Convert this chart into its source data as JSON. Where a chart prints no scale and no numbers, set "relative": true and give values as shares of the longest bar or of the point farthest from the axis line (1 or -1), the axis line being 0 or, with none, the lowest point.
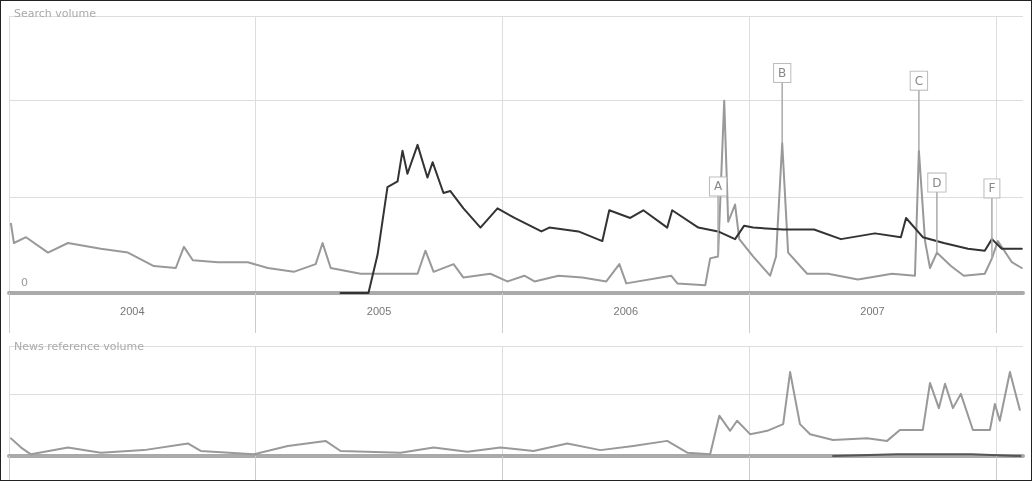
{
  "chart_data": [
    {
      "type": "line",
      "title": "Search volume",
      "relative": true,
      "grid": true,
      "marker": "none",
      "line_style": "solid",
      "tick_labels": "x",
      "xlim": [
        2004,
        2008.11
      ],
      "xticks": [
        {
          "value": 2004,
          "label": null
        },
        {
          "value": 2004.5,
          "label": "2004"
        },
        {
          "value": 2005,
          "label": null
        },
        {
          "value": 2005.5,
          "label": "2005"
        },
        {
          "value": 2006,
          "label": null
        },
        {
          "value": 2006.5,
          "label": "2006"
        },
        {
          "value": 2007,
          "label": null
        },
        {
          "value": 2007.5,
          "label": "2007"
        },
        {
          "value": 2008,
          "label": null
        }
      ],
      "annotations": [
        "0",
        {
          "text": "A",
          "x": 2006.874,
          "y": 0.19
        },
        {
          "text": "B",
          "x": 2007.134,
          "y": 0.78
        },
        {
          "text": "C",
          "x": 2007.688,
          "y": 0.74
        },
        {
          "text": "D",
          "x": 2007.761,
          "y": 0.21
        },
        {
          "text": "F",
          "x": 2007.984,
          "y": 0.18
        }
      ],
      "series": [
        {
          "color": "#999999",
          "x": [
            2004.008,
            2004.02,
            2004.069,
            2004.158,
            2004.239,
            2004.372,
            2004.482,
            2004.587,
            2004.676,
            2004.709,
            2004.745,
            2004.846,
            2004.968,
            2005.049,
            2005.154,
            2005.243,
            2005.271,
            2005.304,
            2005.425,
            2005.656,
            2005.688,
            2005.721,
            2005.802,
            2005.842,
            2005.951,
            2006.02,
            2006.089,
            2006.13,
            2006.227,
            2006.324,
            2006.421,
            2006.474,
            2006.502,
            2006.684,
            2006.709,
            2006.822,
            2006.842,
            2006.874,
            2006.899,
            2006.915,
            2006.943,
            2006.96,
            2007.016,
            2007.085,
            2007.109,
            2007.134,
            2007.158,
            2007.235,
            2007.32,
            2007.441,
            2007.579,
            2007.672,
            2007.688,
            2007.713,
            2007.733,
            2007.761,
            2007.818,
            2007.87,
            2007.955,
            2007.984,
            2008.008,
            2008.065,
            2008.105
          ],
          "values": [
            0.36,
            0.26,
            0.29,
            0.21,
            0.26,
            0.23,
            0.21,
            0.14,
            0.13,
            0.24,
            0.17,
            0.16,
            0.16,
            0.13,
            0.11,
            0.15,
            0.26,
            0.13,
            0.1,
            0.1,
            0.22,
            0.11,
            0.15,
            0.08,
            0.1,
            0.06,
            0.09,
            0.06,
            0.09,
            0.08,
            0.06,
            0.15,
            0.05,
            0.09,
            0.05,
            0.04,
            0.18,
            0.19,
            1,
            0.37,
            0.46,
            0.28,
            0.19,
            0.09,
            0.19,
            0.78,
            0.21,
            0.1,
            0.1,
            0.07,
            0.1,
            0.09,
            0.74,
            0.27,
            0.13,
            0.21,
            0.14,
            0.09,
            0.1,
            0.18,
            0.27,
            0.16,
            0.13
          ]
        },
        {
          "color": "#333333",
          "x": [
            2005.344,
            2005.457,
            2005.494,
            2005.534,
            2005.575,
            2005.595,
            2005.615,
            2005.656,
            2005.696,
            2005.717,
            2005.761,
            2005.789,
            2005.842,
            2005.911,
            2005.98,
            2006.049,
            2006.158,
            2006.19,
            2006.308,
            2006.405,
            2006.433,
            2006.518,
            2006.571,
            2006.668,
            2006.688,
            2006.794,
            2006.874,
            2006.943,
            2006.98,
            2007.016,
            2007.138,
            2007.263,
            2007.372,
            2007.51,
            2007.615,
            2007.636,
            2007.704,
            2007.789,
            2007.887,
            2007.955,
            2007.984,
            2008.024,
            2008.105
          ],
          "values": [
            0,
            0,
            0.2,
            0.55,
            0.58,
            0.74,
            0.62,
            0.77,
            0.6,
            0.68,
            0.52,
            0.53,
            0.44,
            0.34,
            0.44,
            0.39,
            0.32,
            0.34,
            0.32,
            0.27,
            0.43,
            0.39,
            0.43,
            0.34,
            0.43,
            0.34,
            0.32,
            0.28,
            0.35,
            0.34,
            0.33,
            0.33,
            0.28,
            0.31,
            0.29,
            0.39,
            0.29,
            0.26,
            0.23,
            0.22,
            0.28,
            0.23,
            0.23
          ]
        }
      ]
    },
    {
      "type": "line",
      "title": "News reference volume",
      "relative": true,
      "grid": true,
      "marker": "none",
      "line_style": "solid",
      "tick_labels": false,
      "xlim": [
        2004,
        2008.11
      ],
      "xticks": [
        {
          "value": 2004,
          "label": null
        },
        {
          "value": 2005,
          "label": null
        },
        {
          "value": 2006,
          "label": null
        },
        {
          "value": 2007,
          "label": null
        },
        {
          "value": 2008,
          "label": null
        }
      ],
      "series": [
        {
          "color": "#999999",
          "x": [
            2004.008,
            2004.049,
            2004.089,
            2004.239,
            2004.372,
            2004.547,
            2004.725,
            2004.777,
            2004.992,
            2005.13,
            2005.283,
            2005.344,
            2005.587,
            2005.721,
            2005.858,
            2005.992,
            2006.126,
            2006.263,
            2006.397,
            2006.53,
            2006.668,
            2006.749,
            2006.842,
            2006.879,
            2006.923,
            2006.951,
            2007.004,
            2007.073,
            2007.138,
            2007.166,
            2007.206,
            2007.247,
            2007.34,
            2007.478,
            2007.559,
            2007.611,
            2007.704,
            2007.733,
            2007.769,
            2007.794,
            2007.826,
            2007.858,
            2007.907,
            2007.976,
            2007.996,
            2008.016,
            2008.057,
            2008.097
          ],
          "values": [
            0.21,
            0.1,
            0.02,
            0.1,
            0.04,
            0.07,
            0.15,
            0.06,
            0.02,
            0.12,
            0.18,
            0.06,
            0.04,
            0.1,
            0.05,
            0.1,
            0.06,
            0.15,
            0.07,
            0.12,
            0.18,
            0.04,
            0.02,
            0.48,
            0.3,
            0.42,
            0.26,
            0.3,
            0.38,
            1,
            0.38,
            0.26,
            0.19,
            0.21,
            0.18,
            0.31,
            0.31,
            0.87,
            0.57,
            0.86,
            0.57,
            0.74,
            0.31,
            0.31,
            0.62,
            0.42,
            1,
            0.55
          ]
        },
        {
          "color": "#555555",
          "x": [
            2007.34,
            2007.6,
            2007.9,
            2008.1
          ],
          "values": [
            0,
            0.02,
            0.02,
            0
          ]
        }
      ]
    }
  ]
}
